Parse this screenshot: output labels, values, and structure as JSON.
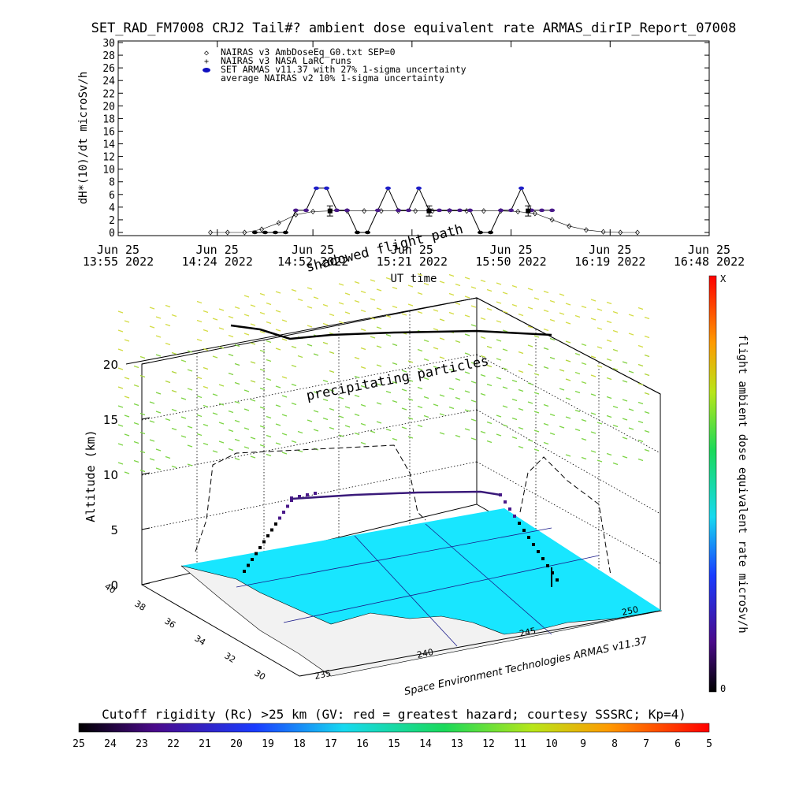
{
  "title": "SET_RAD_FM7008  CRJ2 Tail#? ambient dose equivalent rate ARMAS_dirIP_Report_07008",
  "chart_data": [
    {
      "type": "scatter",
      "ylabel": "dH*(10)/dt microSv/h",
      "xlabel": "UT time",
      "ylim": [
        0,
        30
      ],
      "y_ticks": [
        "0",
        "2",
        "4",
        "6",
        "8",
        "10",
        "12",
        "14",
        "16",
        "18",
        "20",
        "22",
        "24",
        "26",
        "28",
        "30"
      ],
      "x_ticks": [
        {
          "line1": "Jun 25",
          "line2": "13:55 2022"
        },
        {
          "line1": "Jun 25",
          "line2": "14:24 2022"
        },
        {
          "line1": "Jun 25",
          "line2": "14:52 2022"
        },
        {
          "line1": "Jun 25",
          "line2": "15:21 2022"
        },
        {
          "line1": "Jun 25",
          "line2": "15:50 2022"
        },
        {
          "line1": "Jun 25",
          "line2": "16:19 2022"
        },
        {
          "line1": "Jun 25",
          "line2": "16:48 2022"
        }
      ],
      "x_minutes": [
        0,
        29,
        57,
        86,
        115,
        144,
        173
      ],
      "legend": [
        {
          "symbol": "◇",
          "label": "NAIRAS v3 AmbDoseEq_G0.txt SEP=0"
        },
        {
          "symbol": "+",
          "label": "NAIRAS v3 NASA LaRC runs"
        },
        {
          "symbol": "●",
          "label": "SET ARMAS v11.37 with 27% 1-sigma uncertainty"
        },
        {
          "symbol": "",
          "label": "average NAIRAS v2 10% 1-sigma uncertainty"
        }
      ],
      "series": [
        {
          "name": "NAIRAS v3 AmbDoseEq_G0.txt SEP=0",
          "marker": "diamond",
          "color": "#000000",
          "x": [
            27,
            32,
            37,
            42,
            47,
            52,
            57,
            62,
            67,
            72,
            77,
            82,
            87,
            92,
            97,
            102,
            107,
            112,
            117,
            122,
            127,
            132,
            137,
            142,
            147,
            152
          ],
          "y": [
            0,
            0,
            0,
            0.5,
            1.5,
            2.8,
            3.3,
            3.4,
            3.4,
            3.4,
            3.4,
            3.4,
            3.4,
            3.4,
            3.4,
            3.4,
            3.4,
            3.4,
            3.3,
            3.0,
            2.0,
            1.0,
            0.4,
            0.1,
            0,
            0
          ]
        },
        {
          "name": "SET ARMAS v11.37 with 27% 1-sigma uncertainty",
          "marker": "dot",
          "color": "#2a1a8a",
          "x": [
            40,
            43,
            46,
            49,
            52,
            55,
            58,
            61,
            64,
            67,
            70,
            73,
            76,
            79,
            82,
            85,
            88,
            91,
            94,
            97,
            100,
            103,
            106,
            109,
            112,
            115,
            118,
            121,
            124,
            127
          ],
          "y": [
            0,
            0,
            0,
            0,
            3.5,
            3.5,
            7.0,
            7.0,
            3.5,
            3.5,
            0,
            0,
            3.5,
            7.0,
            3.5,
            3.5,
            7.0,
            3.5,
            3.5,
            3.5,
            3.5,
            3.5,
            0,
            0,
            3.5,
            3.5,
            7.0,
            3.5,
            3.5,
            3.5
          ]
        },
        {
          "name": "average NAIRAS v2 10% 1-sigma uncertainty",
          "marker": "errorbar",
          "color": "#000000",
          "x": [
            62,
            91,
            120
          ],
          "y": [
            3.4,
            3.4,
            3.4
          ],
          "err": [
            0.8,
            0.8,
            0.8
          ]
        }
      ]
    },
    {
      "type": "scatter",
      "zlabel": "Altitude (km)",
      "z_ticks": [
        "0",
        "5",
        "10",
        "15",
        "20"
      ],
      "lat_ticks": [
        "40",
        "38",
        "36",
        "34",
        "32",
        "30"
      ],
      "lon_ticks": [
        "235",
        "240",
        "245",
        "250"
      ],
      "annotations": [
        "shadowed flight path",
        "precipitating particles",
        "Space Environment Technologies ARMAS v11.37"
      ],
      "colorbar": {
        "label": "flight ambient dose equivalent rate microSv/h",
        "top": "X",
        "bottom": "0"
      }
    }
  ],
  "rigidity": {
    "title": "Cutoff rigidity (Rc) >25 km (GV: red = greatest hazard; courtesy SSSRC; Kp=4)",
    "ticks": [
      "25",
      "24",
      "23",
      "22",
      "21",
      "20",
      "19",
      "18",
      "17",
      "16",
      "15",
      "14",
      "13",
      "12",
      "11",
      "10",
      "9",
      "8",
      "7",
      "6",
      "5"
    ]
  },
  "colors": {
    "ocean": "#18e6ff",
    "coast": "#f2f2f2",
    "armas": "#2a1a8a"
  }
}
